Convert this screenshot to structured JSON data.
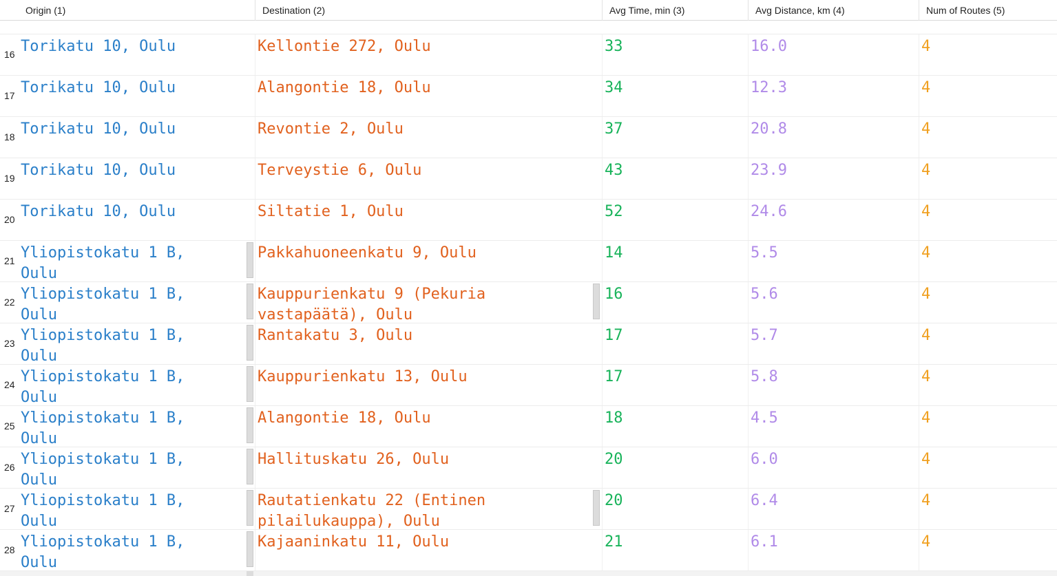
{
  "table": {
    "columns": [
      {
        "label": "Origin (1)"
      },
      {
        "label": "Destination (2)"
      },
      {
        "label": "Avg Time, min (3)"
      },
      {
        "label": "Avg Distance, km (4)"
      },
      {
        "label": "Num of Routes (5)"
      }
    ],
    "rows": [
      {
        "num": "16",
        "origin": "Torikatu 10, Oulu",
        "destination": "Kellontie 272, Oulu",
        "avg_time": "33",
        "avg_distance": "16.0",
        "num_routes": "4",
        "origin_overflow": false,
        "destination_overflow": false
      },
      {
        "num": "17",
        "origin": "Torikatu 10, Oulu",
        "destination": "Alangontie 18, Oulu",
        "avg_time": "34",
        "avg_distance": "12.3",
        "num_routes": "4",
        "origin_overflow": false,
        "destination_overflow": false
      },
      {
        "num": "18",
        "origin": "Torikatu 10, Oulu",
        "destination": "Revontie 2, Oulu",
        "avg_time": "37",
        "avg_distance": "20.8",
        "num_routes": "4",
        "origin_overflow": false,
        "destination_overflow": false
      },
      {
        "num": "19",
        "origin": "Torikatu 10, Oulu",
        "destination": "Terveystie 6, Oulu",
        "avg_time": "43",
        "avg_distance": "23.9",
        "num_routes": "4",
        "origin_overflow": false,
        "destination_overflow": false
      },
      {
        "num": "20",
        "origin": "Torikatu 10, Oulu",
        "destination": "Siltatie 1, Oulu",
        "avg_time": "52",
        "avg_distance": "24.6",
        "num_routes": "4",
        "origin_overflow": false,
        "destination_overflow": false
      },
      {
        "num": "21",
        "origin": "Yliopistokatu 1 B, Oulu",
        "destination": "Pakkahuoneenkatu 9, Oulu",
        "avg_time": "14",
        "avg_distance": "5.5",
        "num_routes": "4",
        "origin_overflow": true,
        "destination_overflow": false
      },
      {
        "num": "22",
        "origin": "Yliopistokatu 1 B, Oulu",
        "destination": "Kauppurienkatu 9 (Pekuria vastapäätä), Oulu",
        "avg_time": "16",
        "avg_distance": "5.6",
        "num_routes": "4",
        "origin_overflow": true,
        "destination_overflow": true
      },
      {
        "num": "23",
        "origin": "Yliopistokatu 1 B, Oulu",
        "destination": "Rantakatu 3, Oulu",
        "avg_time": "17",
        "avg_distance": "5.7",
        "num_routes": "4",
        "origin_overflow": true,
        "destination_overflow": false
      },
      {
        "num": "24",
        "origin": "Yliopistokatu 1 B, Oulu",
        "destination": "Kauppurienkatu 13, Oulu",
        "avg_time": "17",
        "avg_distance": "5.8",
        "num_routes": "4",
        "origin_overflow": true,
        "destination_overflow": false
      },
      {
        "num": "25",
        "origin": "Yliopistokatu 1 B, Oulu",
        "destination": "Alangontie 18, Oulu",
        "avg_time": "18",
        "avg_distance": "4.5",
        "num_routes": "4",
        "origin_overflow": true,
        "destination_overflow": false
      },
      {
        "num": "26",
        "origin": "Yliopistokatu 1 B, Oulu",
        "destination": "Hallituskatu 26, Oulu",
        "avg_time": "20",
        "avg_distance": "6.0",
        "num_routes": "4",
        "origin_overflow": true,
        "destination_overflow": false
      },
      {
        "num": "27",
        "origin": "Yliopistokatu 1 B, Oulu",
        "destination": "Rautatienkatu 22 (Entinen pilailukauppa), Oulu",
        "avg_time": "20",
        "avg_distance": "6.4",
        "num_routes": "4",
        "origin_overflow": true,
        "destination_overflow": true
      },
      {
        "num": "28",
        "origin": "Yliopistokatu 1 B, Oulu",
        "destination": "Kajaaninkatu 11, Oulu",
        "avg_time": "21",
        "avg_distance": "6.1",
        "num_routes": "4",
        "origin_overflow": true,
        "destination_overflow": false
      }
    ]
  },
  "colors": {
    "origin": "#2a7fc9",
    "destination": "#e1611e",
    "avg_time": "#18b35a",
    "avg_distance": "#b08ae8",
    "num_routes": "#f0a020"
  }
}
